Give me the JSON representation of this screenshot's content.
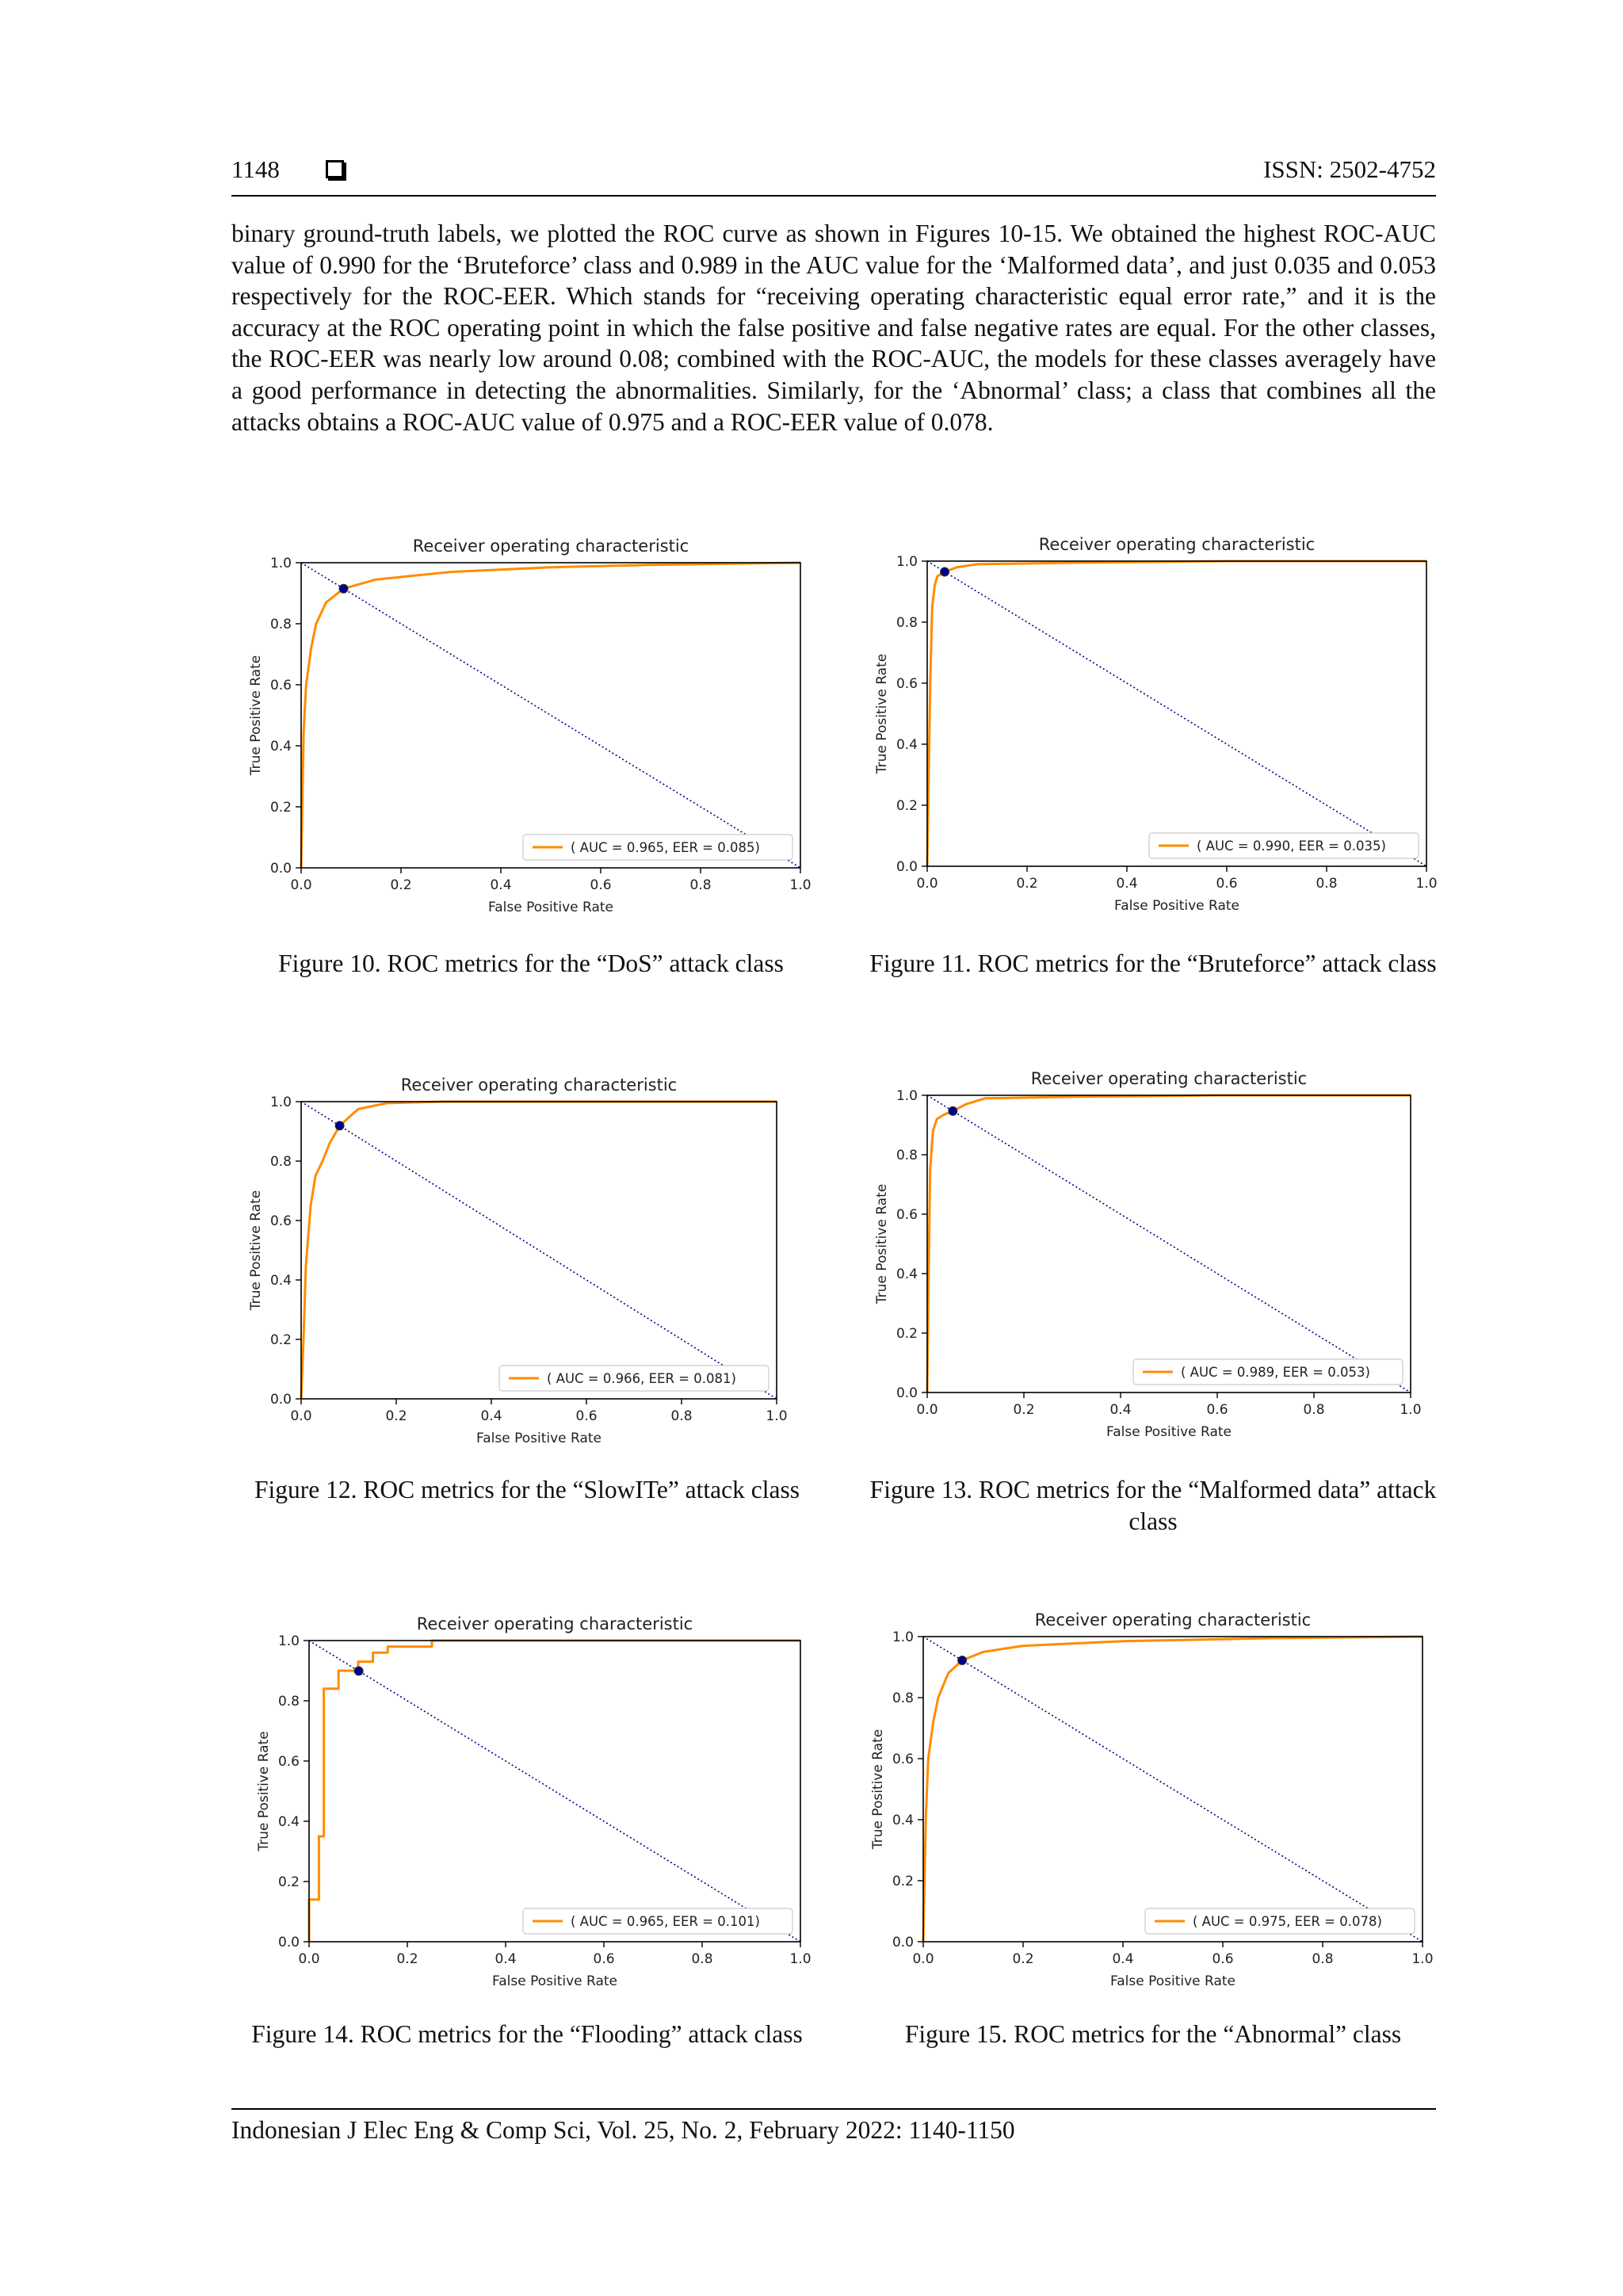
{
  "header": {
    "page_number": "1148",
    "issn": "ISSN: 2502-4752"
  },
  "body_paragraph": "binary ground-truth labels, we plotted the ROC curve as shown in Figures 10-15. We obtained the highest ROC-AUC value of 0.990 for the ‘Bruteforce’ class and 0.989 in the AUC value for the ‘Malformed data’, and just 0.035 and 0.053 respectively for the ROC-EER. Which stands for “receiving operating characteristic equal error rate,” and it is the accuracy at the ROC operating point in which the false positive and false negative rates are equal. For the other classes, the ROC-EER was nearly low around 0.08; combined with the ROC-AUC, the models for these classes averagely have a good performance in detecting the abnormalities. Similarly, for the ‘Abnormal’ class; a class that combines all the attacks obtains a ROC-AUC value of 0.975 and a ROC-EER value of 0.078.",
  "captions": [
    "Figure 10. ROC metrics for the “DoS” attack class",
    "Figure 11. ROC metrics for the “Bruteforce” attack class",
    "Figure 12. ROC metrics for the “SlowITe” attack class",
    "Figure 13. ROC metrics for the “Malformed data” attack class",
    "Figure 14. ROC metrics for the “Flooding” attack class",
    "Figure 15. ROC metrics for the “Abnormal” class"
  ],
  "footer": "Indonesian J Elec Eng & Comp Sci, Vol. 25, No. 2, February 2022: 1140-1150",
  "colors": {
    "roc_curve": "#ff8c00",
    "diagonal": "#00008b",
    "eer_marker": "#00008b"
  },
  "chart_data": [
    {
      "type": "line",
      "title": "Receiver operating characteristic",
      "xlabel": "False Positive Rate",
      "ylabel": "True Positive Rate",
      "xlim": [
        0.0,
        1.0
      ],
      "ylim": [
        0.0,
        1.0
      ],
      "xticks": [
        "0.0",
        "0.2",
        "0.4",
        "0.6",
        "0.8",
        "1.0"
      ],
      "yticks": [
        "0.0",
        "0.2",
        "0.4",
        "0.6",
        "0.8",
        "1.0"
      ],
      "legend": "( AUC = 0.965, EER = 0.085)",
      "legend_position": "lower-right",
      "series": [
        {
          "x": [
            0,
            0.005,
            0.01,
            0.02,
            0.03,
            0.05,
            0.085,
            0.15,
            0.3,
            0.5,
            0.7,
            1.0
          ],
          "y": [
            0,
            0.45,
            0.6,
            0.72,
            0.8,
            0.87,
            0.915,
            0.945,
            0.97,
            0.985,
            0.993,
            1.0
          ]
        }
      ],
      "diagonal": {
        "x": [
          0,
          1
        ],
        "y": [
          1,
          0
        ]
      },
      "eer_point": {
        "x": 0.085,
        "y": 0.915
      }
    },
    {
      "type": "line",
      "title": "Receiver operating characteristic",
      "xlabel": "False Positive Rate",
      "ylabel": "True Positive Rate",
      "xlim": [
        0.0,
        1.0
      ],
      "ylim": [
        0.0,
        1.0
      ],
      "xticks": [
        "0.0",
        "0.2",
        "0.4",
        "0.6",
        "0.8",
        "1.0"
      ],
      "yticks": [
        "0.0",
        "0.2",
        "0.4",
        "0.6",
        "0.8",
        "1.0"
      ],
      "legend": "( AUC = 0.990, EER = 0.035)",
      "legend_position": "lower-right",
      "series": [
        {
          "x": [
            0,
            0.003,
            0.006,
            0.01,
            0.015,
            0.02,
            0.035,
            0.06,
            0.1,
            0.3,
            0.6,
            1.0
          ],
          "y": [
            0,
            0.3,
            0.6,
            0.85,
            0.92,
            0.95,
            0.965,
            0.98,
            0.99,
            0.995,
            1.0,
            1.0
          ]
        }
      ],
      "diagonal": {
        "x": [
          0,
          1
        ],
        "y": [
          1,
          0
        ]
      },
      "eer_point": {
        "x": 0.035,
        "y": 0.965
      }
    },
    {
      "type": "line",
      "title": "Receiver operating characteristic",
      "xlabel": "False Positive Rate",
      "ylabel": "True Positive Rate",
      "xlim": [
        0.0,
        1.0
      ],
      "ylim": [
        0.0,
        1.0
      ],
      "xticks": [
        "0.0",
        "0.2",
        "0.4",
        "0.6",
        "0.8",
        "1.0"
      ],
      "yticks": [
        "0.0",
        "0.2",
        "0.4",
        "0.6",
        "0.8",
        "1.0"
      ],
      "legend": "( AUC = 0.966, EER = 0.081)",
      "legend_position": "lower-right",
      "series": [
        {
          "x": [
            0,
            0.005,
            0.01,
            0.02,
            0.03,
            0.045,
            0.06,
            0.081,
            0.12,
            0.18,
            0.3,
            1.0
          ],
          "y": [
            0,
            0.2,
            0.45,
            0.65,
            0.75,
            0.8,
            0.86,
            0.919,
            0.975,
            0.995,
            1.0,
            1.0
          ]
        }
      ],
      "diagonal": {
        "x": [
          0,
          1
        ],
        "y": [
          1,
          0
        ]
      },
      "eer_point": {
        "x": 0.081,
        "y": 0.919
      }
    },
    {
      "type": "line",
      "title": "Receiver operating characteristic",
      "xlabel": "False Positive Rate",
      "ylabel": "True Positive Rate",
      "xlim": [
        0.0,
        1.0
      ],
      "ylim": [
        0.0,
        1.0
      ],
      "xticks": [
        "0.0",
        "0.2",
        "0.4",
        "0.6",
        "0.8",
        "1.0"
      ],
      "yticks": [
        "0.0",
        "0.2",
        "0.4",
        "0.6",
        "0.8",
        "1.0"
      ],
      "legend": "( AUC = 0.989, EER = 0.053)",
      "legend_position": "lower-right",
      "series": [
        {
          "x": [
            0,
            0.003,
            0.006,
            0.012,
            0.02,
            0.035,
            0.053,
            0.08,
            0.12,
            0.3,
            0.6,
            1.0
          ],
          "y": [
            0,
            0.4,
            0.75,
            0.88,
            0.92,
            0.935,
            0.947,
            0.97,
            0.99,
            0.995,
            1.0,
            1.0
          ]
        }
      ],
      "diagonal": {
        "x": [
          0,
          1
        ],
        "y": [
          1,
          0
        ]
      },
      "eer_point": {
        "x": 0.053,
        "y": 0.947
      }
    },
    {
      "type": "line",
      "title": "Receiver operating characteristic",
      "xlabel": "False Positive Rate",
      "ylabel": "True Positive Rate",
      "xlim": [
        0.0,
        1.0
      ],
      "ylim": [
        0.0,
        1.0
      ],
      "xticks": [
        "0.0",
        "0.2",
        "0.4",
        "0.6",
        "0.8",
        "1.0"
      ],
      "yticks": [
        "0.0",
        "0.2",
        "0.4",
        "0.6",
        "0.8",
        "1.0"
      ],
      "legend": "( AUC = 0.965, EER = 0.101)",
      "legend_position": "lower-right",
      "series": [
        {
          "x": [
            0,
            0,
            0.02,
            0.02,
            0.03,
            0.03,
            0.06,
            0.06,
            0.1,
            0.1,
            0.13,
            0.13,
            0.16,
            0.16,
            0.25,
            0.25,
            1.0
          ],
          "y": [
            0,
            0.14,
            0.14,
            0.35,
            0.35,
            0.84,
            0.84,
            0.9,
            0.9,
            0.93,
            0.93,
            0.96,
            0.96,
            0.98,
            0.98,
            1.0,
            1.0
          ]
        }
      ],
      "diagonal": {
        "x": [
          0,
          1
        ],
        "y": [
          1,
          0
        ]
      },
      "eer_point": {
        "x": 0.101,
        "y": 0.899
      }
    },
    {
      "type": "line",
      "title": "Receiver operating characteristic",
      "xlabel": "False Positive Rate",
      "ylabel": "True Positive Rate",
      "xlim": [
        0.0,
        1.0
      ],
      "ylim": [
        0.0,
        1.0
      ],
      "xticks": [
        "0.0",
        "0.2",
        "0.4",
        "0.6",
        "0.8",
        "1.0"
      ],
      "yticks": [
        "0.0",
        "0.2",
        "0.4",
        "0.6",
        "0.8",
        "1.0"
      ],
      "legend": "( AUC = 0.975, EER = 0.078)",
      "legend_position": "lower-right",
      "series": [
        {
          "x": [
            0,
            0.005,
            0.01,
            0.02,
            0.03,
            0.05,
            0.078,
            0.12,
            0.2,
            0.4,
            0.7,
            1.0
          ],
          "y": [
            0,
            0.4,
            0.6,
            0.72,
            0.8,
            0.88,
            0.922,
            0.95,
            0.97,
            0.985,
            0.995,
            1.0
          ]
        }
      ],
      "diagonal": {
        "x": [
          0,
          1
        ],
        "y": [
          1,
          0
        ]
      },
      "eer_point": {
        "x": 0.078,
        "y": 0.922
      }
    }
  ]
}
